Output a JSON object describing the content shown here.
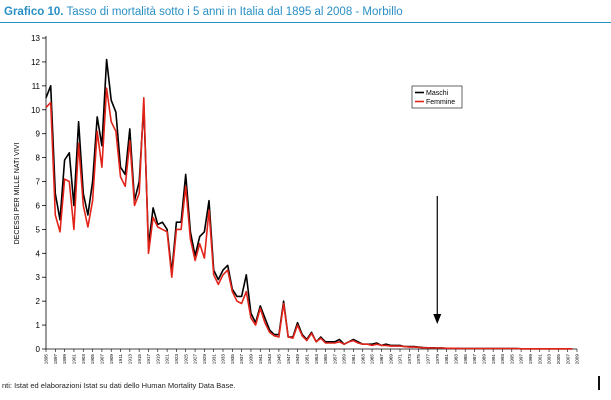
{
  "header": {
    "label": "Grafico 10.",
    "title": "Tasso di mortalità sotto i 5 anni in Italia dal 1895 al 2008 - Morbillo"
  },
  "footer": {
    "source": "nti: Istat ed elaborazioni Istat su dati dello Human Mortality Data Base."
  },
  "chart_data": {
    "type": "line",
    "title": "Tasso di mortalità sotto i 5 anni in Italia dal 1895 al 2008 - Morbillo",
    "ylabel": "DECESSI PER MILLE NATI VIVI",
    "xlabel": "",
    "ylim": [
      0,
      13
    ],
    "yticks": [
      0,
      1,
      2,
      3,
      4,
      5,
      6,
      7,
      8,
      9,
      10,
      11,
      12,
      13
    ],
    "xlim": [
      1895,
      2009
    ],
    "xtick_labels": [
      "1895",
      "1897",
      "1899",
      "1901",
      "1903",
      "1905",
      "1907",
      "1909",
      "1911",
      "1913",
      "1915",
      "1917",
      "1919",
      "1921",
      "1923",
      "1925",
      "1927",
      "1929",
      "1931",
      "1933",
      "1935",
      "1937",
      "1939",
      "1941",
      "1943",
      "1945",
      "1947",
      "1949",
      "1951",
      "1953",
      "1955",
      "1957",
      "1959",
      "1961",
      "1963",
      "1965",
      "1967",
      "1969",
      "1971",
      "1973",
      "1975",
      "1977",
      "1979",
      "1981",
      "1983",
      "1985",
      "1987",
      "1989",
      "1991",
      "1993",
      "1995",
      "1997",
      "1999",
      "2001",
      "2003",
      "2005",
      "2007",
      "2009"
    ],
    "legend_position": "top-right",
    "grid": false,
    "arrow_year": 1979,
    "x": [
      1895,
      1896,
      1897,
      1898,
      1899,
      1900,
      1901,
      1902,
      1903,
      1904,
      1905,
      1906,
      1907,
      1908,
      1909,
      1910,
      1911,
      1912,
      1913,
      1914,
      1915,
      1916,
      1917,
      1918,
      1919,
      1920,
      1921,
      1922,
      1923,
      1924,
      1925,
      1926,
      1927,
      1928,
      1929,
      1930,
      1931,
      1932,
      1933,
      1934,
      1935,
      1936,
      1937,
      1938,
      1939,
      1940,
      1941,
      1942,
      1943,
      1944,
      1945,
      1946,
      1947,
      1948,
      1949,
      1950,
      1951,
      1952,
      1953,
      1954,
      1955,
      1956,
      1957,
      1958,
      1959,
      1960,
      1961,
      1962,
      1963,
      1964,
      1965,
      1966,
      1967,
      1968,
      1969,
      1970,
      1971,
      1972,
      1973,
      1974,
      1975,
      1976,
      1977,
      1978,
      1979,
      1980,
      1981,
      1982,
      1983,
      1984,
      1985,
      1986,
      1987,
      1988,
      1989,
      1990,
      1991,
      1992,
      1993,
      1994,
      1995,
      1996,
      1997,
      1998,
      1999,
      2000,
      2001,
      2002,
      2003,
      2004,
      2005,
      2006,
      2007,
      2008
    ],
    "series": [
      {
        "name": "Maschi",
        "color": "#000000",
        "values": [
          10.5,
          11.0,
          6.5,
          5.4,
          7.9,
          8.2,
          6.0,
          9.5,
          6.5,
          5.6,
          7.0,
          9.7,
          8.5,
          12.1,
          10.4,
          9.9,
          7.6,
          7.3,
          9.2,
          6.2,
          7.0,
          10.2,
          4.3,
          5.9,
          5.2,
          5.3,
          5.0,
          3.2,
          5.3,
          5.3,
          7.3,
          4.9,
          3.9,
          4.7,
          4.9,
          6.2,
          3.3,
          2.9,
          3.3,
          3.5,
          2.5,
          2.2,
          2.2,
          3.1,
          1.5,
          1.1,
          1.8,
          1.3,
          0.8,
          0.6,
          0.6,
          2.0,
          0.5,
          0.5,
          1.1,
          0.6,
          0.4,
          0.7,
          0.3,
          0.5,
          0.3,
          0.3,
          0.3,
          0.4,
          0.2,
          0.3,
          0.4,
          0.3,
          0.2,
          0.2,
          0.2,
          0.25,
          0.15,
          0.2,
          0.15,
          0.15,
          0.15,
          0.1,
          0.1,
          0.1,
          0.08,
          0.06,
          0.05,
          0.05,
          0.04,
          0.04,
          0.03,
          0.03,
          0.03,
          0.02,
          0.02,
          0.02,
          0.02,
          0.02,
          0.02,
          0.02,
          0.02,
          0.02,
          0.02,
          0.02,
          0.02,
          0.02,
          0.01,
          0.01,
          0.01,
          0.01,
          0.01,
          0.01,
          0.01,
          0.01,
          0.01,
          0.01,
          0.01,
          0.01
        ]
      },
      {
        "name": "Femmine",
        "color": "#e2231a",
        "values": [
          10.1,
          10.3,
          5.6,
          4.9,
          7.1,
          7.0,
          5.0,
          8.6,
          6.0,
          5.1,
          6.2,
          9.1,
          7.6,
          10.9,
          9.5,
          9.1,
          7.2,
          6.8,
          8.7,
          6.0,
          6.5,
          10.5,
          4.0,
          5.5,
          5.1,
          5.0,
          4.9,
          3.0,
          5.0,
          5.0,
          6.8,
          4.6,
          3.7,
          4.4,
          3.8,
          5.8,
          3.1,
          2.7,
          3.1,
          3.3,
          2.4,
          2.0,
          1.9,
          2.4,
          1.3,
          1.0,
          1.7,
          1.1,
          0.7,
          0.55,
          0.5,
          1.9,
          0.5,
          0.45,
          1.0,
          0.55,
          0.35,
          0.65,
          0.3,
          0.45,
          0.25,
          0.25,
          0.25,
          0.3,
          0.2,
          0.3,
          0.35,
          0.25,
          0.2,
          0.2,
          0.15,
          0.2,
          0.15,
          0.15,
          0.12,
          0.12,
          0.12,
          0.1,
          0.08,
          0.08,
          0.07,
          0.05,
          0.05,
          0.04,
          0.04,
          0.04,
          0.03,
          0.03,
          0.03,
          0.02,
          0.02,
          0.02,
          0.02,
          0.02,
          0.02,
          0.02,
          0.02,
          0.02,
          0.02,
          0.02,
          0.02,
          0.02,
          0.01,
          0.01,
          0.01,
          0.01,
          0.01,
          0.01,
          0.01,
          0.01,
          0.01,
          0.01,
          0.01,
          0.01
        ]
      }
    ]
  }
}
